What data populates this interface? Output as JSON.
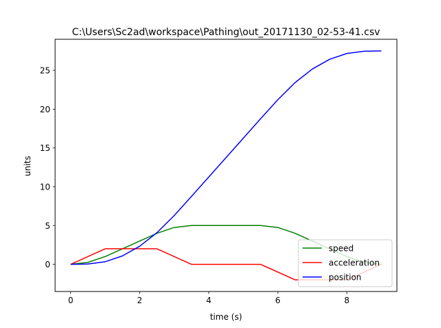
{
  "chart_data": {
    "type": "line",
    "title": "C:\\Users\\Sc2ad\\workspace\\Pathing\\out_20171130_02-53-41.csv",
    "xlabel": "time (s)",
    "ylabel": "units",
    "xlim": [
      -0.45,
      9.45
    ],
    "ylim": [
      -3.5,
      29.0
    ],
    "xticks": [
      0,
      2,
      4,
      6,
      8
    ],
    "yticks": [
      0,
      5,
      10,
      15,
      20,
      25
    ],
    "xtick_labels": [
      "0",
      "2",
      "4",
      "6",
      "8"
    ],
    "ytick_labels": [
      "0",
      "5",
      "10",
      "15",
      "20",
      "25"
    ],
    "grid": false,
    "legend_position": "bottom-right",
    "series": [
      {
        "name": "speed",
        "color": "#008000",
        "x": [
          0,
          0.5,
          1.0,
          1.5,
          2.0,
          2.5,
          3.0,
          3.5,
          4.0,
          4.5,
          5.0,
          5.5,
          6.0,
          6.5,
          7.0,
          7.5,
          8.0,
          8.5,
          9.0
        ],
        "y": [
          0,
          0.25,
          1.0,
          2.0,
          3.0,
          4.0,
          4.75,
          5.0,
          5.0,
          5.0,
          5.0,
          5.0,
          4.75,
          4.0,
          3.0,
          2.0,
          1.0,
          0.25,
          0
        ]
      },
      {
        "name": "acceleration",
        "color": "#ff0000",
        "x": [
          0,
          1.0,
          2.5,
          3.5,
          5.5,
          6.5,
          8.0,
          9.0
        ],
        "y": [
          0,
          2,
          2,
          0,
          0,
          -2,
          -2,
          0
        ]
      },
      {
        "name": "position",
        "color": "#0000ff",
        "x": [
          0,
          0.5,
          1.0,
          1.5,
          2.0,
          2.5,
          3.0,
          3.5,
          4.0,
          4.5,
          5.0,
          5.5,
          6.0,
          6.5,
          7.0,
          7.5,
          8.0,
          8.5,
          9.0
        ],
        "y": [
          0,
          0.042,
          0.333,
          1.083,
          2.333,
          4.083,
          6.292,
          8.75,
          11.25,
          13.75,
          16.25,
          18.75,
          21.208,
          23.417,
          25.167,
          26.417,
          27.167,
          27.458,
          27.5
        ]
      }
    ]
  }
}
